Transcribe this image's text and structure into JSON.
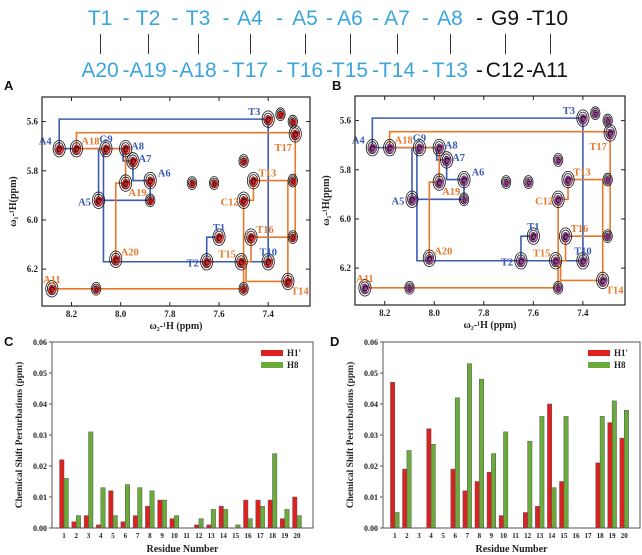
{
  "sequence": {
    "top": [
      {
        "label": "T1",
        "color": "blue"
      },
      {
        "label": "T2",
        "color": "blue"
      },
      {
        "label": "T3",
        "color": "blue"
      },
      {
        "label": "A4",
        "color": "blue"
      },
      {
        "label": "A5",
        "color": "blue"
      },
      {
        "label": "A6",
        "color": "blue"
      },
      {
        "label": "A7",
        "color": "blue"
      },
      {
        "label": "A8",
        "color": "blue"
      },
      {
        "label": "G9",
        "color": "black"
      },
      {
        "label": "T10",
        "color": "black"
      }
    ],
    "bottom": [
      {
        "label": "A20",
        "color": "blue"
      },
      {
        "label": "A19",
        "color": "blue"
      },
      {
        "label": "A18",
        "color": "blue"
      },
      {
        "label": "T17",
        "color": "blue"
      },
      {
        "label": "T16",
        "color": "blue"
      },
      {
        "label": "T15",
        "color": "blue"
      },
      {
        "label": "T14",
        "color": "blue"
      },
      {
        "label": "T13",
        "color": "blue"
      },
      {
        "label": "C12",
        "color": "black"
      },
      {
        "label": "A11",
        "color": "black"
      }
    ],
    "separator": "-"
  },
  "panels": {
    "a": "A",
    "b": "B",
    "c": "C",
    "d": "D"
  },
  "colors": {
    "blue": "#3b5bb5",
    "orange": "#e8782a",
    "red": "#e02020",
    "magenta": "#a0409a",
    "green": "#6aab3a",
    "seq_blue": "#3aa6dd"
  },
  "chart_data": [
    {
      "type": "scatter",
      "panel": "A",
      "subtype": "2D NOESY spectrum overlay",
      "xlabel": "ω₂-¹H (ppm)",
      "ylabel": "ω₁-¹H(ppm)",
      "xlim": [
        8.32,
        7.23
      ],
      "ylim": [
        5.5,
        6.35
      ],
      "xticks": [
        "8.2",
        "8.0",
        "7.8",
        "7.6",
        "7.4"
      ],
      "yticks": [
        "5.6",
        "5.8",
        "6.0",
        "6.2"
      ],
      "overlay_color": "red",
      "peaks": [
        {
          "label": "A4",
          "x": 8.25,
          "y": 5.71,
          "color": "blue",
          "pos": "nw"
        },
        {
          "label": "A18",
          "x": 8.18,
          "y": 5.71,
          "color": "orange",
          "pos": "ne"
        },
        {
          "label": "G9",
          "x": 8.06,
          "y": 5.71,
          "color": "blue",
          "pos": "n"
        },
        {
          "label": "A8",
          "x": 7.98,
          "y": 5.71,
          "color": "blue",
          "pos": "e"
        },
        {
          "label": "A7",
          "x": 7.95,
          "y": 5.76,
          "color": "blue",
          "pos": "e"
        },
        {
          "label": "A6",
          "x": 7.88,
          "y": 5.84,
          "color": "blue",
          "pos": "ne"
        },
        {
          "label": "A19",
          "x": 7.98,
          "y": 5.85,
          "color": "orange",
          "pos": "se"
        },
        {
          "label": "A5",
          "x": 8.09,
          "y": 5.92,
          "color": "blue",
          "pos": "w"
        },
        {
          "label": "T3",
          "x": 7.4,
          "y": 5.59,
          "color": "blue",
          "pos": "nw"
        },
        {
          "label": "T17",
          "x": 7.29,
          "y": 5.65,
          "color": "orange",
          "pos": "sw"
        },
        {
          "label": "T13",
          "x": 7.46,
          "y": 5.84,
          "color": "orange",
          "pos": "ne"
        },
        {
          "label": "C12",
          "x": 7.5,
          "y": 5.92,
          "color": "orange",
          "pos": "w"
        },
        {
          "label": "T16",
          "x": 7.47,
          "y": 6.07,
          "color": "orange",
          "pos": "ne"
        },
        {
          "label": "T1",
          "x": 7.6,
          "y": 6.07,
          "color": "blue",
          "pos": "n"
        },
        {
          "label": "T2",
          "x": 7.65,
          "y": 6.17,
          "color": "blue",
          "pos": "w"
        },
        {
          "label": "T15",
          "x": 7.51,
          "y": 6.17,
          "color": "orange",
          "pos": "nw"
        },
        {
          "label": "T10",
          "x": 7.4,
          "y": 6.17,
          "color": "blue",
          "pos": "n"
        },
        {
          "label": "A20",
          "x": 8.02,
          "y": 6.16,
          "color": "orange",
          "pos": "ne"
        },
        {
          "label": "T14",
          "x": 7.32,
          "y": 6.25,
          "color": "orange",
          "pos": "se"
        },
        {
          "label": "A11",
          "x": 8.28,
          "y": 6.28,
          "color": "orange",
          "pos": "n"
        }
      ],
      "extra_peaks": [
        [
          7.88,
          5.92
        ],
        [
          7.3,
          5.84
        ],
        [
          7.3,
          6.07
        ],
        [
          7.5,
          6.28
        ],
        [
          7.71,
          5.85
        ],
        [
          7.62,
          5.85
        ],
        [
          7.35,
          5.57
        ],
        [
          7.3,
          5.6
        ],
        [
          7.5,
          5.76
        ],
        [
          8.1,
          6.28
        ]
      ],
      "walks": [
        {
          "color": "blue",
          "points": [
            [
              8.25,
              5.71
            ],
            [
              8.25,
              5.59
            ],
            [
              7.4,
              5.59
            ],
            [
              7.4,
              6.17
            ],
            [
              8.07,
              6.17
            ],
            [
              8.07,
              5.71
            ],
            [
              8.25,
              5.71
            ]
          ]
        },
        {
          "color": "blue",
          "points": [
            [
              8.09,
              5.71
            ],
            [
              8.09,
              5.92
            ],
            [
              7.88,
              5.92
            ],
            [
              7.88,
              5.84
            ],
            [
              7.95,
              5.84
            ],
            [
              7.95,
              5.76
            ],
            [
              7.99,
              5.76
            ],
            [
              7.99,
              5.71
            ],
            [
              8.09,
              5.71
            ]
          ]
        },
        {
          "color": "blue",
          "points": [
            [
              7.65,
              6.17
            ],
            [
              7.65,
              6.07
            ],
            [
              7.59,
              6.07
            ]
          ]
        },
        {
          "color": "orange",
          "points": [
            [
              8.18,
              5.71
            ],
            [
              8.18,
              5.645
            ],
            [
              7.29,
              5.645
            ],
            [
              7.29,
              6.07
            ],
            [
              7.47,
              6.07
            ],
            [
              7.47,
              6.17
            ],
            [
              7.51,
              6.17
            ]
          ]
        },
        {
          "color": "orange",
          "points": [
            [
              8.02,
              6.16
            ],
            [
              8.02,
              5.85
            ],
            [
              7.98,
              5.85
            ],
            [
              7.98,
              5.71
            ],
            [
              8.18,
              5.71
            ]
          ]
        },
        {
          "color": "orange",
          "points": [
            [
              8.28,
              6.28
            ],
            [
              7.5,
              6.28
            ],
            [
              7.5,
              5.92
            ],
            [
              7.46,
              5.92
            ],
            [
              7.46,
              5.84
            ],
            [
              7.32,
              5.84
            ],
            [
              7.32,
              6.25
            ],
            [
              7.49,
              6.25
            ],
            [
              7.49,
              6.17
            ]
          ]
        }
      ]
    },
    {
      "type": "scatter",
      "panel": "B",
      "subtype": "2D NOESY spectrum overlay",
      "xlabel": "ω₂-¹H (ppm)",
      "ylabel": "ω₁-¹H(ppm)",
      "xlim": [
        8.32,
        7.23
      ],
      "ylim": [
        5.5,
        6.35
      ],
      "xticks": [
        "8.2",
        "8.0",
        "7.8",
        "7.6",
        "7.4"
      ],
      "yticks": [
        "5.6",
        "5.8",
        "6.0",
        "6.2"
      ],
      "overlay_color": "magenta",
      "same_assignments_as": "A"
    },
    {
      "type": "bar",
      "panel": "C",
      "title": "",
      "xlabel": "Residue Number",
      "ylabel": "Chemical Shift Perturbations (ppm)",
      "ylim": [
        0,
        0.06
      ],
      "yticks": [
        "0.00",
        "0.01",
        "0.02",
        "0.03",
        "0.04",
        "0.05",
        "0.06"
      ],
      "categories": [
        "1",
        "2",
        "3",
        "4",
        "5",
        "6",
        "7",
        "8",
        "9",
        "10",
        "11",
        "12",
        "13",
        "14",
        "15",
        "16",
        "17",
        "18",
        "19",
        "20"
      ],
      "legend": "top-right",
      "series": [
        {
          "name": "H1'",
          "color": "red",
          "values": [
            0.022,
            0.002,
            0.004,
            0.001,
            0.012,
            0.002,
            0.004,
            0.007,
            0.009,
            0.003,
            0,
            0.001,
            0.001,
            0.007,
            0,
            0.009,
            0.009,
            0.009,
            0.003,
            0.01
          ]
        },
        {
          "name": "H8",
          "color": "green",
          "values": [
            0.016,
            0.004,
            0.031,
            0.013,
            0.004,
            0.014,
            0.013,
            0.012,
            0.009,
            0.004,
            0,
            0.003,
            0.006,
            0.006,
            0.001,
            0.003,
            0.007,
            0.024,
            0.006,
            0.004
          ]
        }
      ]
    },
    {
      "type": "bar",
      "panel": "D",
      "title": "",
      "xlabel": "Residue Number",
      "ylabel": "Chemical Shift Perturbations (ppm)",
      "ylim": [
        0,
        0.06
      ],
      "yticks": [
        "0.00",
        "0.01",
        "0.02",
        "0.03",
        "0.04",
        "0.05",
        "0.06"
      ],
      "categories": [
        "1",
        "2",
        "3",
        "4",
        "5",
        "6",
        "7",
        "8",
        "9",
        "10",
        "11",
        "12",
        "13",
        "14",
        "15",
        "16",
        "17",
        "18",
        "19",
        "20"
      ],
      "legend": "top-right",
      "series": [
        {
          "name": "H1'",
          "color": "red",
          "values": [
            0.047,
            0.019,
            0,
            0.032,
            0,
            0.019,
            0.012,
            0.015,
            0.018,
            0.004,
            0,
            0.005,
            0.007,
            0.04,
            0.015,
            0,
            0,
            0.021,
            0.034,
            0.029
          ]
        },
        {
          "name": "H8",
          "color": "green",
          "values": [
            0.005,
            0.025,
            0,
            0.027,
            0,
            0.042,
            0.053,
            0.048,
            0.024,
            0.031,
            0,
            0.028,
            0.036,
            0.013,
            0.036,
            0,
            0,
            0.036,
            0.041,
            0.038
          ]
        }
      ]
    }
  ]
}
